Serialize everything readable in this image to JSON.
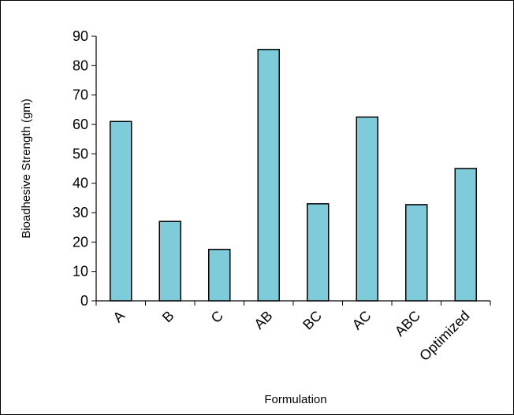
{
  "chart_data": {
    "type": "bar",
    "title": "",
    "xlabel": "Formulation",
    "ylabel": "Bioadhesive Strength (gm)",
    "categories": [
      "A",
      "B",
      "C",
      "AB",
      "BC",
      "AC",
      "ABC",
      "Optimized"
    ],
    "values": [
      61,
      27,
      17.5,
      85.5,
      33,
      62.5,
      32.7,
      45
    ],
    "ylim": [
      0,
      90
    ],
    "yticks": [
      "0",
      "10",
      "20",
      "30",
      "40",
      "50",
      "60",
      "70",
      "80",
      "90"
    ],
    "grid": false,
    "legend": "none",
    "colors": {
      "bar_fill": "#7ecbd9",
      "bar_stroke": "#000000",
      "axis": "#000000",
      "background": "#ffffff"
    }
  }
}
